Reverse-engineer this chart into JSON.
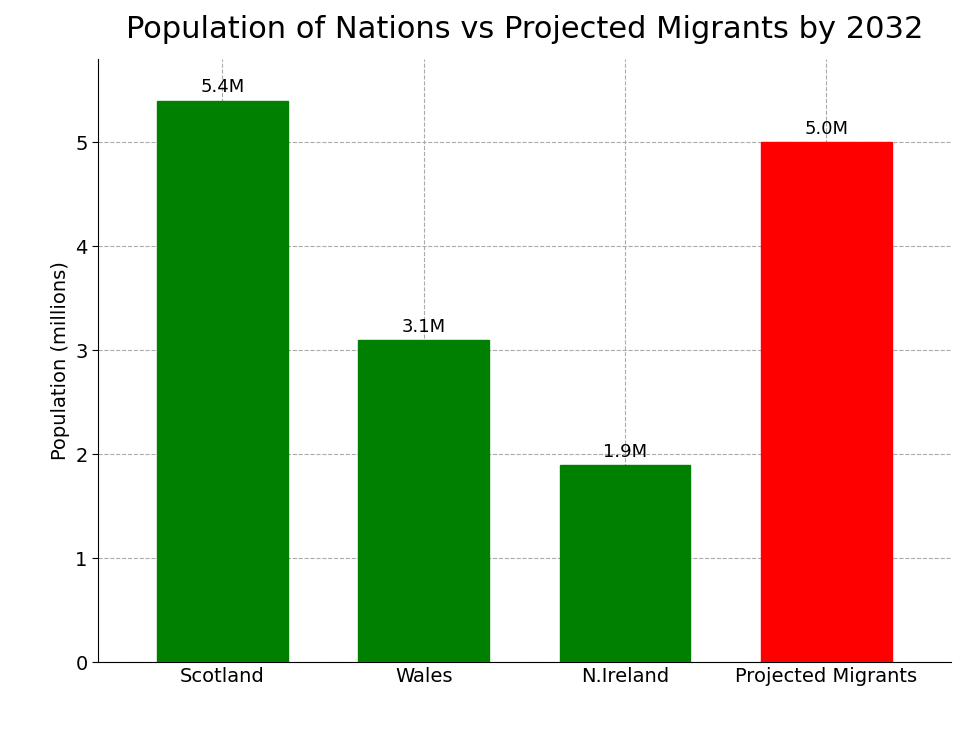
{
  "title": "Population of Nations vs Projected Migrants by 2032",
  "categories": [
    "Scotland",
    "Wales",
    "N.Ireland",
    "Projected Migrants"
  ],
  "values": [
    5.4,
    3.1,
    1.9,
    5.0
  ],
  "labels": [
    "5.4M",
    "3.1M",
    "1.9M",
    "5.0M"
  ],
  "bar_colors": [
    "#008000",
    "#008000",
    "#008000",
    "#ff0000"
  ],
  "ylabel": "Population (millions)",
  "ylim": [
    0,
    5.8
  ],
  "yticks": [
    0,
    1,
    2,
    3,
    4,
    5
  ],
  "grid_color": "#aaaaaa",
  "background_color": "#ffffff",
  "title_fontsize": 22,
  "label_fontsize": 14,
  "tick_fontsize": 14,
  "bar_label_fontsize": 13,
  "bar_width": 0.65
}
